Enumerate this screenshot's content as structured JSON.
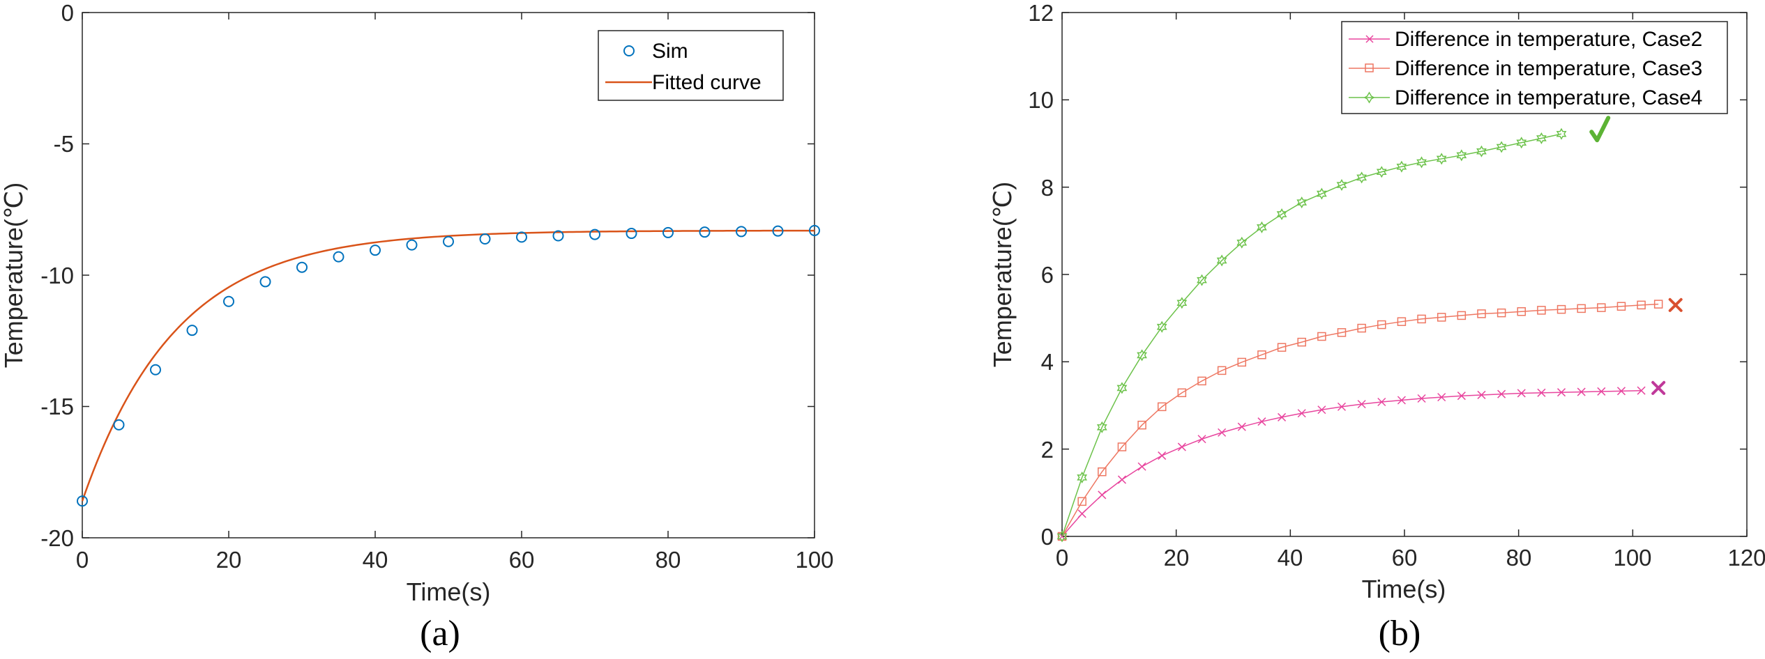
{
  "chart_data": [
    {
      "type": "scatter",
      "panel_label": "(a)",
      "xlabel": "Time(s)",
      "ylabel": "Temperature(℃)",
      "xlim": [
        0,
        100
      ],
      "ylim": [
        -20,
        0
      ],
      "xticks": [
        "0",
        "20",
        "40",
        "60",
        "80",
        "100"
      ],
      "yticks": [
        "0",
        "-5",
        "-10",
        "-15",
        "-20"
      ],
      "legend_position": "top-right",
      "colors": {
        "sim": "#0072BD",
        "fit": "#D95319"
      },
      "series": [
        {
          "name": "Sim",
          "style": "markers",
          "x": [
            0,
            5,
            10,
            15,
            20,
            25,
            30,
            35,
            40,
            45,
            50,
            55,
            60,
            65,
            70,
            75,
            80,
            85,
            90,
            95,
            100
          ],
          "y": [
            -18.6,
            -15.7,
            -13.6,
            -12.1,
            -11.0,
            -10.25,
            -9.7,
            -9.3,
            -9.05,
            -8.85,
            -8.72,
            -8.62,
            -8.55,
            -8.5,
            -8.45,
            -8.41,
            -8.38,
            -8.36,
            -8.34,
            -8.32,
            -8.3
          ]
        },
        {
          "name": "Fitted curve",
          "style": "line",
          "model": {
            "a": -8.3,
            "b": -10.3,
            "tau": 12.8
          }
        }
      ]
    },
    {
      "type": "line",
      "panel_label": "(b)",
      "xlabel": "Time(s)",
      "ylabel": "Temperature(℃)",
      "xlim": [
        0,
        120
      ],
      "ylim": [
        0,
        12
      ],
      "xticks": [
        "0",
        "20",
        "40",
        "60",
        "80",
        "100",
        "120"
      ],
      "yticks": [
        "0",
        "2",
        "4",
        "6",
        "8",
        "10",
        "12"
      ],
      "legend_position": "top-right",
      "series": [
        {
          "name": "Difference in temperature, Case2",
          "color": "#E8459E",
          "marker": "x",
          "end_mark": {
            "symbol": "cross",
            "x": 104.5,
            "y": 3.4,
            "color": "#C0399A"
          },
          "x": [
            0,
            3.5,
            7,
            10.5,
            14,
            17.5,
            21,
            24.5,
            28,
            31.5,
            35,
            38.5,
            42,
            45.5,
            49,
            52.5,
            56,
            59.5,
            63,
            66.5,
            70,
            73.5,
            77,
            80.5,
            84,
            87.5,
            91,
            94.5,
            98,
            101.5
          ],
          "y": [
            0,
            0.52,
            0.95,
            1.3,
            1.6,
            1.85,
            2.05,
            2.23,
            2.38,
            2.51,
            2.63,
            2.73,
            2.82,
            2.9,
            2.97,
            3.03,
            3.08,
            3.12,
            3.16,
            3.19,
            3.22,
            3.24,
            3.26,
            3.28,
            3.29,
            3.3,
            3.31,
            3.32,
            3.33,
            3.34
          ]
        },
        {
          "name": "Difference in temperature, Case3",
          "color": "#EE7762",
          "marker": "square",
          "end_mark": {
            "symbol": "cross",
            "x": 107.5,
            "y": 5.3,
            "color": "#D9502F"
          },
          "x": [
            0,
            3.5,
            7,
            10.5,
            14,
            17.5,
            21,
            24.5,
            28,
            31.5,
            35,
            38.5,
            42,
            45.5,
            49,
            52.5,
            56,
            59.5,
            63,
            66.5,
            70,
            73.5,
            77,
            80.5,
            84,
            87.5,
            91,
            94.5,
            98,
            101.5,
            104.5
          ],
          "y": [
            0,
            0.8,
            1.48,
            2.05,
            2.55,
            2.97,
            3.29,
            3.56,
            3.8,
            3.99,
            4.16,
            4.33,
            4.45,
            4.58,
            4.67,
            4.77,
            4.85,
            4.92,
            4.98,
            5.02,
            5.06,
            5.1,
            5.12,
            5.15,
            5.18,
            5.2,
            5.22,
            5.24,
            5.27,
            5.3,
            5.32
          ]
        },
        {
          "name": "Difference in temperature, Case4",
          "color": "#6CC24A",
          "marker": "hexagram",
          "end_mark": {
            "symbol": "check",
            "x": 94,
            "y": 9.3,
            "color": "#5CB334"
          },
          "x": [
            0,
            3.5,
            7,
            10.5,
            14,
            17.5,
            21,
            24.5,
            28,
            31.5,
            35,
            38.5,
            42,
            45.5,
            49,
            52.5,
            56,
            59.5,
            63,
            66.5,
            70,
            73.5,
            77,
            80.5,
            84,
            87.5
          ],
          "y": [
            0,
            1.35,
            2.5,
            3.4,
            4.15,
            4.8,
            5.35,
            5.87,
            6.32,
            6.73,
            7.08,
            7.38,
            7.65,
            7.85,
            8.05,
            8.22,
            8.35,
            8.47,
            8.57,
            8.65,
            8.73,
            8.82,
            8.92,
            9.02,
            9.12,
            9.22
          ]
        }
      ]
    }
  ]
}
